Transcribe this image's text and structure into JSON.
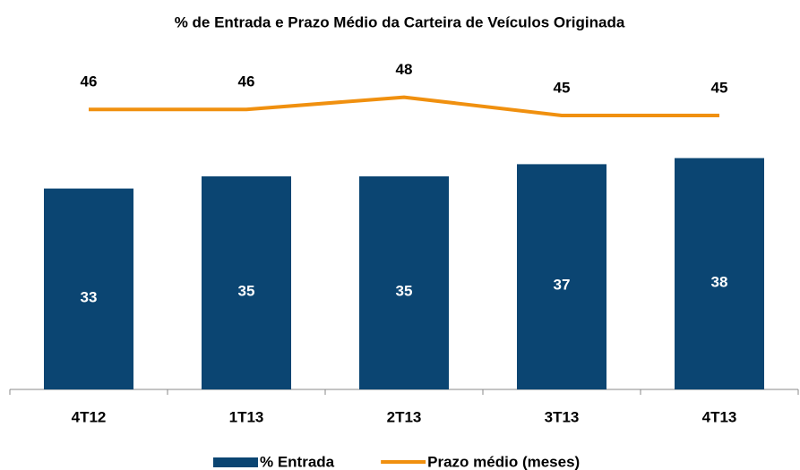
{
  "chart_data": {
    "type": "bar_line",
    "title": "% de Entrada e Prazo Médio da Carteira de Veículos Originada",
    "categories": [
      "4T12",
      "1T13",
      "2T13",
      "3T13",
      "4T13"
    ],
    "series": [
      {
        "name": "% Entrada",
        "type": "bar",
        "color": "#0b4572",
        "values": [
          33,
          35,
          35,
          37,
          38
        ]
      },
      {
        "name": "Prazo médio (meses)",
        "type": "line",
        "color": "#f0900f",
        "values": [
          46,
          46,
          48,
          45,
          45
        ]
      }
    ],
    "ylim": [
      0,
      55
    ],
    "grid": false,
    "legend": "bottom"
  }
}
